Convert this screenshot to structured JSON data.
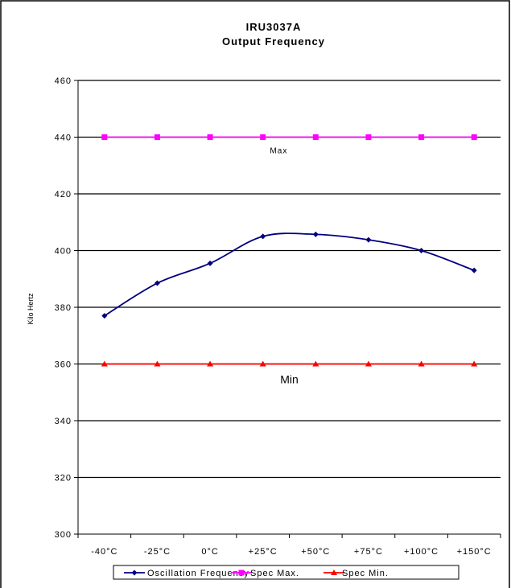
{
  "chart_data": {
    "type": "line",
    "title": "IRU3037A",
    "subtitle": "Output Frequency",
    "ylabel": "Kilo Hertz",
    "xlabel": "",
    "categories": [
      "-40°C",
      "-25°C",
      "0°C",
      "+25°C",
      "+50°C",
      "+75°C",
      "+100°C",
      "+150°C"
    ],
    "ylim": [
      300,
      460
    ],
    "yticks": [
      300,
      320,
      340,
      360,
      380,
      400,
      420,
      440,
      460
    ],
    "grid": true,
    "legend_position": "bottom",
    "series": [
      {
        "name": "Oscillation Frequency",
        "color": "#000080",
        "marker": "diamond",
        "values": [
          377,
          388.5,
          395.5,
          405,
          405.7,
          403.8,
          400,
          393
        ]
      },
      {
        "name": "Spec Max.",
        "color": "#ff00ff",
        "marker": "square",
        "values": [
          440,
          440,
          440,
          440,
          440,
          440,
          440,
          440
        ]
      },
      {
        "name": "Spec Min.",
        "color": "#ff0000",
        "marker": "triangle",
        "values": [
          360,
          360,
          360,
          360,
          360,
          360,
          360,
          360
        ]
      }
    ],
    "annotations": [
      {
        "text": "Max",
        "category_index": 3.3,
        "y": 440
      },
      {
        "text": "Min",
        "category_index": 3.5,
        "y": 360
      }
    ]
  }
}
